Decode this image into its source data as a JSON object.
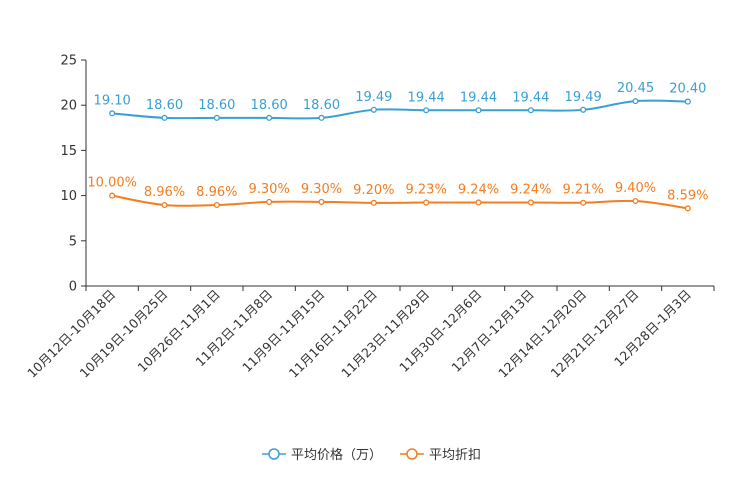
{
  "chart_data": {
    "type": "line",
    "categories": [
      "10月12日-10月18日",
      "10月19日-10月25日",
      "10月26日-11月1日",
      "11月2日-11月8日",
      "11月9日-11月15日",
      "11月16日-11月22日",
      "11月23日-11月29日",
      "11月30日-12月6日",
      "12月7日-12月13日",
      "12月14日-12月20日",
      "12月21日-12月27日",
      "12月28日-1月3日"
    ],
    "ylim": [
      0,
      25
    ],
    "yticks": [
      0,
      5,
      10,
      15,
      20,
      25
    ],
    "series": [
      {
        "name": "平均价格（万）",
        "color": "#3a9fd3",
        "values": [
          19.1,
          18.6,
          18.6,
          18.6,
          18.6,
          19.49,
          19.44,
          19.44,
          19.44,
          19.49,
          20.45,
          20.4
        ],
        "labels": [
          "19.10",
          "18.60",
          "18.60",
          "18.60",
          "18.60",
          "19.49",
          "19.44",
          "19.44",
          "19.44",
          "19.49",
          "20.45",
          "20.40"
        ]
      },
      {
        "name": "平均折扣",
        "color": "#f57c1f",
        "values": [
          10.0,
          8.96,
          8.96,
          9.3,
          9.3,
          9.2,
          9.23,
          9.24,
          9.24,
          9.21,
          9.4,
          8.59
        ],
        "labels": [
          "10.00%",
          "8.96%",
          "8.96%",
          "9.30%",
          "9.30%",
          "9.20%",
          "9.23%",
          "9.24%",
          "9.24%",
          "9.21%",
          "9.40%",
          "8.59%"
        ]
      }
    ],
    "legend_position": "bottom-center"
  }
}
